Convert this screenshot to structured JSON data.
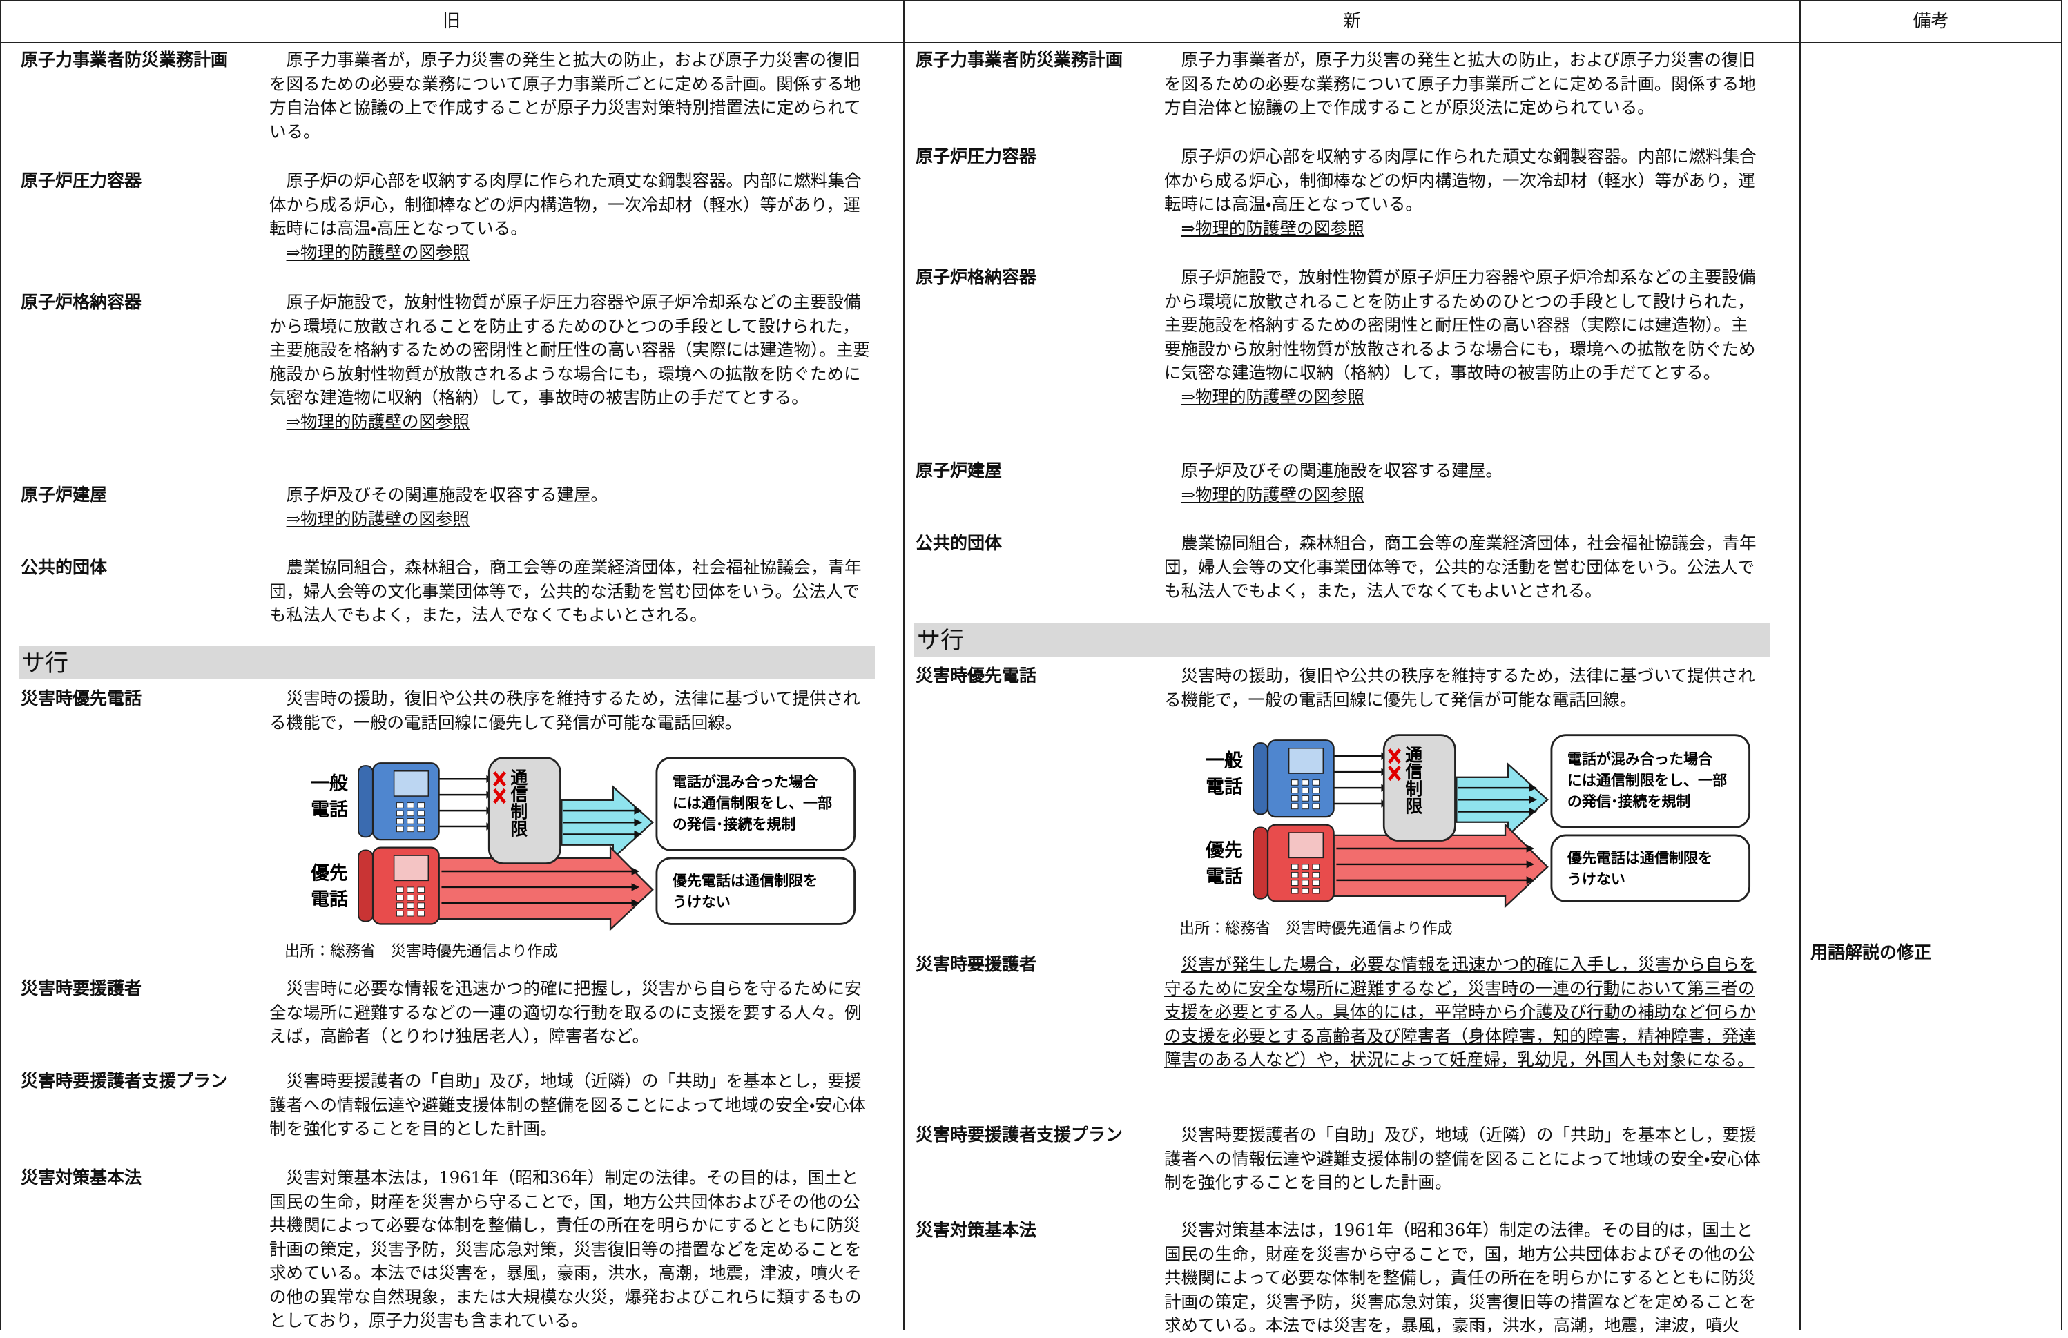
{
  "header": {
    "old": "旧",
    "new": "新",
    "remarks": "備考"
  },
  "old": {
    "entries": [
      {
        "term": "原子力事業者防災業務計画",
        "text": "原子力事業者が，原子力災害の発生と拡大の防止，および原子力災害の復旧を図るための必要な業務について原子力事業所ごとに定める計画。関係する地方自治体と協議の上で作成することが原子力災害対策特別措置法に定められている。"
      },
      {
        "term": "原子炉圧力容器",
        "text": "原子炉の炉心部を収納する肉厚に作られた頑丈な鋼製容器。内部に燃料集合体から成る炉心，制御棒などの炉内構造物，一次冷却材（軽水）等があり，運転時には高温・高圧となっている。",
        "link": "⇒物理的防護壁の図参照"
      },
      {
        "term": "原子炉格納容器",
        "text": "原子炉施設で，放射性物質が原子炉圧力容器や原子炉冷却系などの主要設備から環境に放散されることを防止するためのひとつの手段として設けられた，主要施設を格納するための密閉性と耐圧性の高い容器（実際には建造物）。主要施設から放射性物質が放散されるような場合にも，環境への拡散を防ぐために気密な建造物に収納（格納）して，事故時の被害防止の手だてとする。",
        "link": "⇒物理的防護壁の図参照"
      },
      {
        "term": "原子炉建屋",
        "text": "原子炉及びその関連施設を収容する建屋。",
        "link": "⇒物理的防護壁の図参照"
      },
      {
        "term": "公共的団体",
        "text": "農業協同組合，森林組合，商工会等の産業経済団体，社会福祉協議会，青年団，婦人会等の文化事業団体等で，公共的な活動を営む団体をいう。公法人でも私法人でもよく，また，法人でなくてもよいとされる。"
      },
      {
        "heading": "サ行"
      },
      {
        "term": "災害時優先電話",
        "text": "災害時の援助，復旧や公共の秩序を維持するため，法律に基づいて提供される機能で，一般の電話回線に優先して発信が可能な電話回線。",
        "figure": {
          "general": [
            "一般",
            "電話"
          ],
          "priority": [
            "優先",
            "電話"
          ],
          "restriction": "通信制限",
          "callout1": [
            "電話が混み合った場合",
            "には通信制限をし、一部",
            "の発信･接続を規制"
          ],
          "callout2": [
            "優先電話は通信制限を",
            "うけない"
          ]
        },
        "source": "出所：総務省　災害時優先通信より作成"
      },
      {
        "term": "災害時要援護者",
        "text": "災害時に必要な情報を迅速かつ的確に把握し，災害から自らを守るために安全な場所に避難するなどの一連の適切な行動を取るのに支援を要する人々。例えば，高齢者（とりわけ独居老人），障害者など。"
      },
      {
        "term": "災害時要援護者支援プラン",
        "text": "災害時要援護者の「自助」及び，地域（近隣）の「共助」を基本とし，要援護者への情報伝達や避難支援体制の整備を図ることによって地域の安全・安心体制を強化することを目的とした計画。"
      },
      {
        "term": "災害対策基本法",
        "text": "災害対策基本法は，1961年（昭和36年）制定の法律。その目的は，国土と国民の生命，財産を災害から守ることで，国，地方公共団体およびその他の公共機関によって必要な体制を整備し，責任の所在を明らかにするとともに防災計画の策定，災害予防，災害応急対策，災害復旧等の措置などを定めることを求めている。本法では災害を，暴風，豪雨，洪水，高潮，地震，津波，噴火その他の異常な自然現象，または大規模な火災，爆発およびこれらに類するものとしており，原子力災害も含まれている。"
      }
    ]
  },
  "new": {
    "entries": [
      {
        "term": "原子力事業者防災業務計画",
        "text": "原子力事業者が，原子力災害の発生と拡大の防止，および原子力災害の復旧を図るための必要な業務について原子力事業所ごとに定める計画。関係する地方自治体と協議の上で作成することが原災法に定められている。"
      },
      {
        "term": "原子炉圧力容器",
        "text": "原子炉の炉心部を収納する肉厚に作られた頑丈な鋼製容器。内部に燃料集合体から成る炉心，制御棒などの炉内構造物，一次冷却材（軽水）等があり，運転時には高温・高圧となっている。",
        "link": "⇒物理的防護壁の図参照"
      },
      {
        "term": "原子炉格納容器",
        "text": "原子炉施設で，放射性物質が原子炉圧力容器や原子炉冷却系などの主要設備から環境に放散されることを防止するためのひとつの手段として設けられた，主要施設を格納するための密閉性と耐圧性の高い容器（実際には建造物）。主要施設から放射性物質が放散されるような場合にも，環境への拡散を防ぐために気密な建造物に収納（格納）して，事故時の被害防止の手だてとする。",
        "link": "⇒物理的防護壁の図参照"
      },
      {
        "term": "原子炉建屋",
        "text": "原子炉及びその関連施設を収容する建屋。",
        "link": "⇒物理的防護壁の図参照"
      },
      {
        "term": "公共的団体",
        "text": "農業協同組合，森林組合，商工会等の産業経済団体，社会福祉協議会，青年団，婦人会等の文化事業団体等で，公共的な活動を営む団体をいう。公法人でも私法人でもよく，また，法人でなくてもよいとされる。"
      },
      {
        "heading": "サ行"
      },
      {
        "term": "災害時優先電話",
        "text": "災害時の援助，復旧や公共の秩序を維持するため，法律に基づいて提供される機能で，一般の電話回線に優先して発信が可能な電話回線。",
        "figure": {
          "general": [
            "一般",
            "電話"
          ],
          "priority": [
            "優先",
            "電話"
          ],
          "restriction": "通信制限",
          "callout1": [
            "電話が混み合った場合",
            "には通信制限をし、一部",
            "の発信･接続を規制"
          ],
          "callout2": [
            "優先電話は通信制限を",
            "うけない"
          ]
        },
        "source": "出所：総務省　災害時優先通信より作成"
      },
      {
        "term": "災害時要援護者",
        "text": "災害が発生した場合，必要な情報を迅速かつ的確に入手し，災害から自らを守るために安全な場所に避難するなど，災害時の一連の行動において第三者の支援を必要とする人。具体的には，平常時から介護及び行動の補助など何らかの支援を必要とする高齢者及び障害者（身体障害，知的障害，精神障害，発達障害のある人など）や，状況によって妊産婦，乳幼児，外国人も対象になる。"
      },
      {
        "term": "災害時要援護者支援プラン",
        "text": "災害時要援護者の「自助」及び，地域（近隣）の「共助」を基本とし，要援護者への情報伝達や避難支援体制の整備を図ることによって地域の安全・安心体制を強化することを目的とした計画。"
      },
      {
        "term": "災害対策基本法",
        "text": "災害対策基本法は，1961年（昭和36年）制定の法律。その目的は，国土と国民の生命，財産を災害から守ることで，国，地方公共団体およびその他の公共機関によって必要な体制を整備し，責任の所在を明らかにするとともに防災計画の策定，災害予防，災害応急対策，災害復旧等の措置などを定めることを求めている。本法では災害を，暴風，豪雨，洪水，高潮，地震，津波，噴火"
      }
    ]
  },
  "remarks": "用語解説の修正"
}
